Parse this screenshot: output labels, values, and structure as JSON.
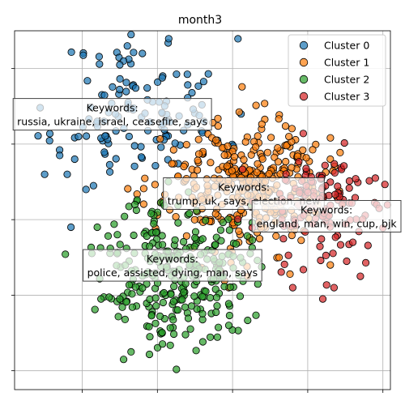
{
  "chart_data": {
    "type": "scatter",
    "title": "month3",
    "xlabel": "",
    "ylabel": "",
    "grid": true,
    "xlim": [
      -4.8,
      5.2
    ],
    "ylim": [
      -4.5,
      5.0
    ],
    "xticks": [
      -3,
      -1,
      1,
      3,
      5
    ],
    "yticks": [
      -4,
      -2,
      0,
      2,
      4
    ],
    "legend_position": "top-right",
    "series": [
      {
        "name": "Cluster 0",
        "color": "#1f77b4",
        "center": [
          -1.4,
          2.9
        ],
        "spread": [
          1.1,
          0.95
        ],
        "count": 120,
        "seed": 11,
        "extra": [
          [
            -4.0,
            1.2
          ],
          [
            -3.6,
            1.7
          ],
          [
            -3.2,
            1.6
          ],
          [
            -3.4,
            1.2
          ],
          [
            -3.3,
            -0.2
          ],
          [
            -2.9,
            0.8
          ],
          [
            -2.7,
            0.9
          ],
          [
            -2.6,
            2.6
          ],
          [
            -3.1,
            2.2
          ],
          [
            -1.8,
            4.6
          ],
          [
            -1.4,
            4.4
          ],
          [
            -1.9,
            4.2
          ],
          [
            -1.7,
            4.9
          ],
          [
            -2.0,
            4.1
          ],
          [
            0.2,
            2.3
          ],
          [
            0.6,
            2.1
          ]
        ]
      },
      {
        "name": "Cluster 1",
        "color": "#ff7f0e",
        "center": [
          1.3,
          0.9
        ],
        "spread": [
          1.05,
          0.85
        ],
        "count": 330,
        "seed": 23,
        "extra": [
          [
            3.6,
            1.6
          ],
          [
            3.4,
            0.6
          ],
          [
            3.2,
            0.2
          ],
          [
            2.5,
            2.2
          ],
          [
            2.2,
            1.9
          ],
          [
            1.4,
            -1.5
          ],
          [
            0.9,
            -1.8
          ],
          [
            3.6,
            -1.2
          ]
        ]
      },
      {
        "name": "Cluster 2",
        "color": "#2ca02c",
        "center": [
          -0.5,
          -1.3
        ],
        "spread": [
          0.95,
          0.95
        ],
        "count": 290,
        "seed": 37,
        "extra": [
          [
            -2.6,
            -0.2
          ],
          [
            -2.5,
            -2.1
          ],
          [
            -1.9,
            -3.7
          ],
          [
            -1.7,
            -3.5
          ],
          [
            -1.2,
            -3.1
          ],
          [
            -2.0,
            -2.1
          ],
          [
            0.9,
            -2.8
          ],
          [
            -1.6,
            0.4
          ]
        ]
      },
      {
        "name": "Cluster 3",
        "color": "#d62728",
        "center": [
          3.4,
          0.4
        ],
        "spread": [
          0.85,
          0.75
        ],
        "count": 130,
        "seed": 53,
        "extra": [
          [
            5.2,
            0.8
          ],
          [
            4.4,
            -1.5
          ],
          [
            3.7,
            -1.8
          ],
          [
            3.4,
            -2.1
          ],
          [
            4.9,
            0.3
          ],
          [
            2.6,
            -1.8
          ],
          [
            4.2,
            -0.6
          ],
          [
            4.8,
            1.1
          ]
        ]
      }
    ],
    "annotations": [
      {
        "title": "Keywords:",
        "keywords": "russia, ukraine, israel, ceasefire, says",
        "x": -2.2,
        "y": 2.8
      },
      {
        "title": "Keywords:",
        "keywords": "trump, uk, says, election, new",
        "x": 1.3,
        "y": 0.7
      },
      {
        "title": "Keywords:",
        "keywords": "england, man, win, cup, bjk",
        "x": 3.5,
        "y": 0.1
      },
      {
        "title": "Keywords:",
        "keywords": "police, assisted, dying, man, says",
        "x": -0.6,
        "y": -1.2
      }
    ]
  }
}
